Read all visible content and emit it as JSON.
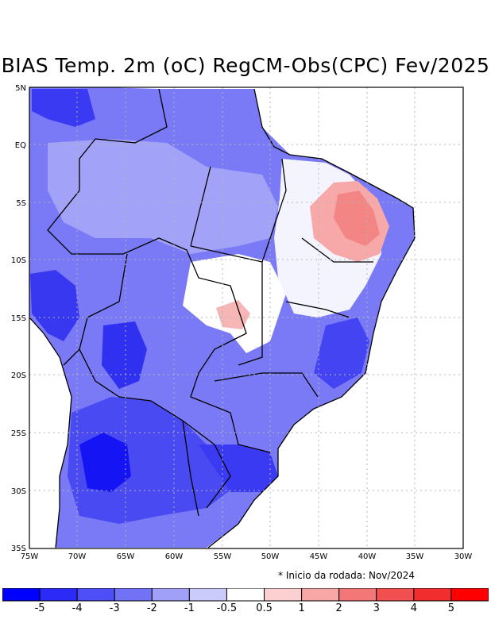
{
  "title": "BIAS Temp. 2m (oC) RegCM-Obs(CPC) Fev/2025",
  "note": "* Inicio da rodada: Nov/2024",
  "axes": {
    "x_ticks": [
      "75W",
      "70W",
      "65W",
      "60W",
      "55W",
      "50W",
      "45W",
      "40W",
      "35W",
      "30W"
    ],
    "y_ticks": [
      "5N",
      "EQ",
      "5S",
      "10S",
      "15S",
      "20S",
      "25S",
      "30S",
      "35S"
    ]
  },
  "colorbar": {
    "labels": [
      "-5",
      "-4",
      "-3",
      "-2",
      "-1",
      "-0.5",
      "0.5",
      "1",
      "2",
      "3",
      "4",
      "5"
    ],
    "colors": [
      "#0000ff",
      "#2b2bf5",
      "#4f4ff7",
      "#7272f7",
      "#a0a0f8",
      "#cacafb",
      "#ffffff",
      "#fcd0d0",
      "#f8a6a6",
      "#f47777",
      "#f25050",
      "#f22d2d",
      "#ff0000"
    ]
  },
  "map_colors": {
    "background": "#7a7af6",
    "strong_cold": "#3333f0",
    "cold": "#5656f4",
    "warm": "#f6a0a0",
    "neutral": "#ffffff"
  }
}
